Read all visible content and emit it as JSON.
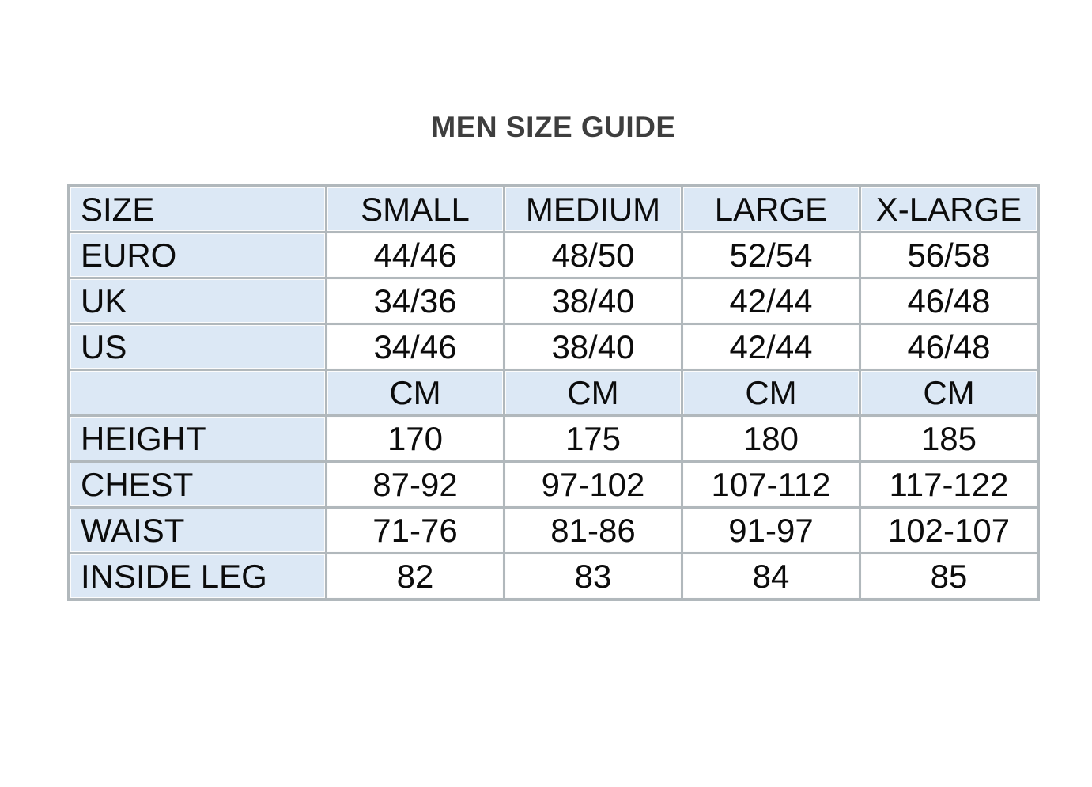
{
  "title": "MEN SIZE GUIDE",
  "colors": {
    "header_bg": "#dce8f5",
    "grid_line": "#b1b8bc",
    "title_text": "#3e3e3e",
    "cell_text": "#0c0c0c",
    "page_bg": "#ffffff"
  },
  "table": {
    "columns": [
      "SIZE",
      "SMALL",
      "MEDIUM",
      "LARGE",
      "X-LARGE"
    ],
    "rows": [
      {
        "cells": [
          "SIZE",
          "SMALL",
          "MEDIUM",
          "LARGE",
          "X-LARGE"
        ]
      },
      {
        "cells": [
          "EURO",
          "44/46",
          "48/50",
          "52/54",
          "56/58"
        ]
      },
      {
        "cells": [
          "UK",
          "34/36",
          "38/40",
          "42/44",
          "46/48"
        ]
      },
      {
        "cells": [
          "US",
          "34/46",
          "38/40",
          "42/44",
          "46/48"
        ]
      },
      {
        "cells": [
          "",
          "CM",
          "CM",
          "CM",
          "CM"
        ]
      },
      {
        "cells": [
          "HEIGHT",
          "170",
          "175",
          "180",
          "185"
        ]
      },
      {
        "cells": [
          "CHEST",
          "87-92",
          "97-102",
          "107-112",
          "117-122"
        ]
      },
      {
        "cells": [
          "WAIST",
          "71-76",
          "81-86",
          "91-97",
          "102-107"
        ]
      },
      {
        "cells": [
          "INSIDE LEG",
          "82",
          "83",
          "84",
          "85"
        ]
      }
    ]
  }
}
